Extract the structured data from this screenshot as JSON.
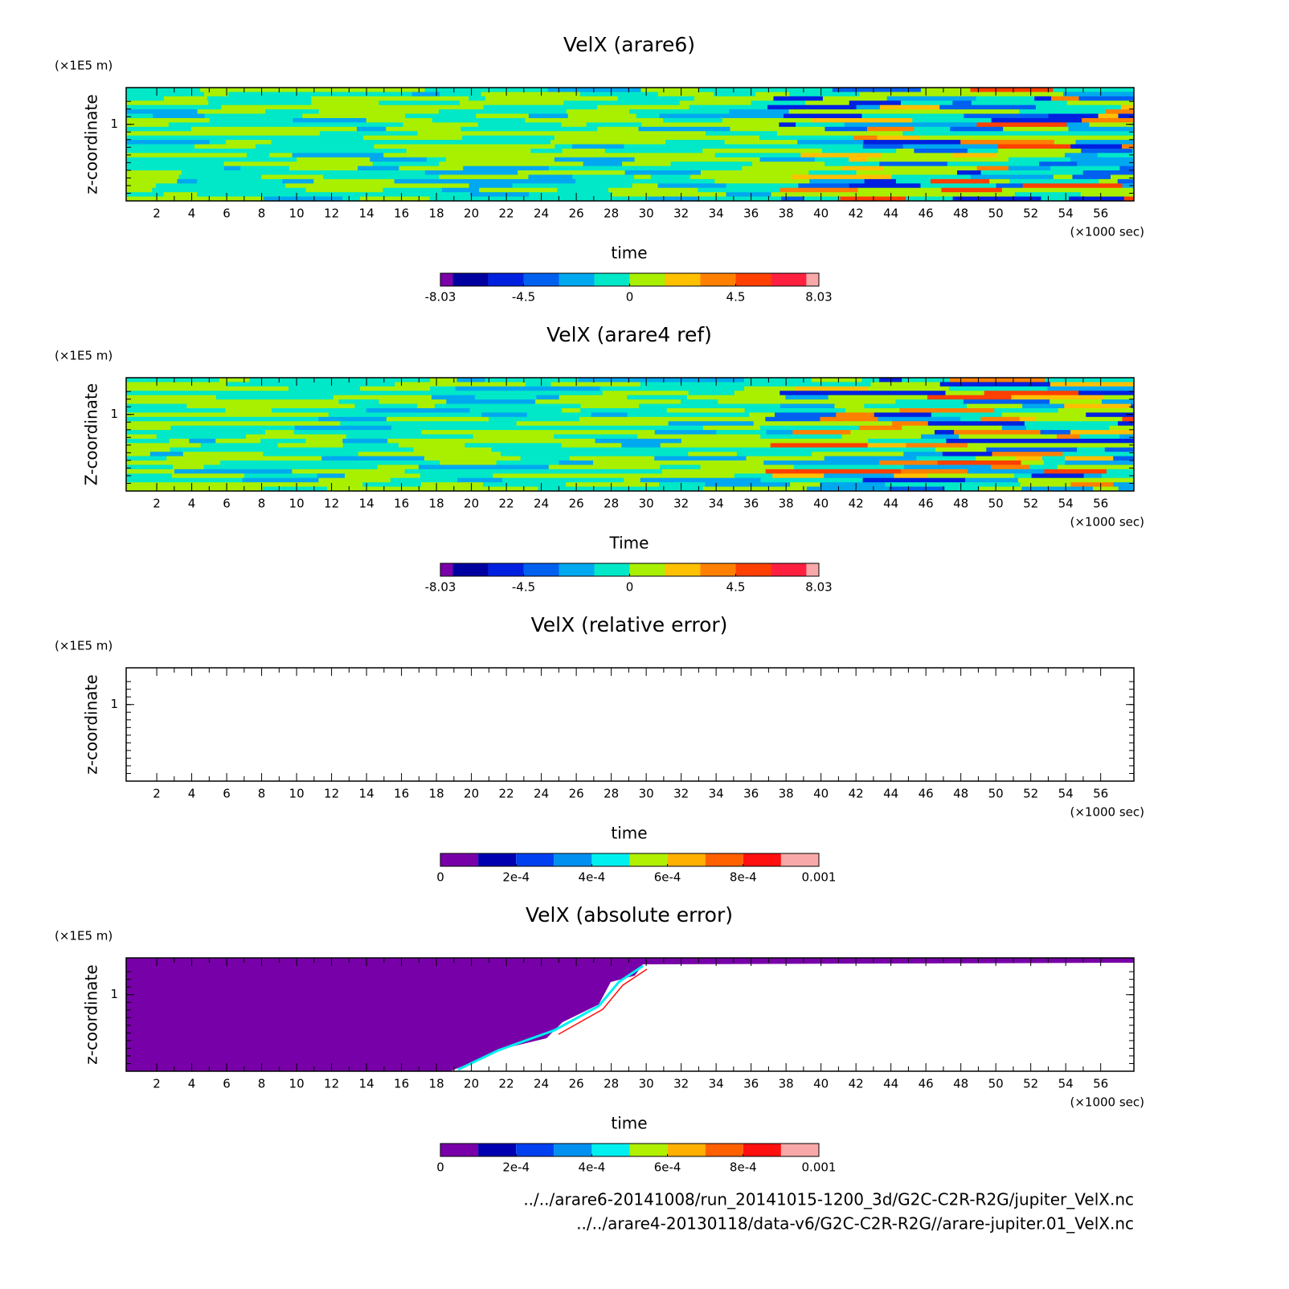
{
  "chart_data": [
    {
      "type": "contour",
      "title": "VelX (arare6)",
      "xlabel": "time",
      "ylabel": "z-coordinate",
      "xunit": "(×1000 sec)",
      "yunit": "(×1E5 m)",
      "xlim": [
        0.25,
        57.9
      ],
      "xticks": [
        2,
        4,
        6,
        8,
        10,
        12,
        14,
        16,
        18,
        20,
        22,
        24,
        26,
        28,
        30,
        32,
        34,
        36,
        38,
        40,
        42,
        44,
        46,
        48,
        50,
        52,
        54,
        56
      ],
      "ylim": [
        0,
        1.48
      ],
      "yticks": [
        1
      ],
      "colorbar": {
        "levels": [
          -8.03,
          -7.5,
          -6,
          -4.5,
          -3,
          -1.5,
          0,
          1.5,
          3,
          4.5,
          6,
          7.5,
          8.03
        ],
        "colors": [
          "#7a00aa",
          "#0000a0",
          "#0020e0",
          "#0060f0",
          "#00a8f0",
          "#00e8c8",
          "#a8f000",
          "#ffc000",
          "#ff8000",
          "#ff4000",
          "#ff2040",
          "#f8a8a8"
        ],
        "ticks": [
          -8.03,
          -4.5,
          0,
          4.5,
          8.03
        ]
      }
    },
    {
      "type": "contour",
      "title": "VelX (arare4 ref)",
      "xlabel": "Time",
      "ylabel": "Z-coordinate",
      "xunit": "(×1000 sec)",
      "yunit": "(×1E5 m)",
      "xlim": [
        0.25,
        57.9
      ],
      "xticks": [
        2,
        4,
        6,
        8,
        10,
        12,
        14,
        16,
        18,
        20,
        22,
        24,
        26,
        28,
        30,
        32,
        34,
        36,
        38,
        40,
        42,
        44,
        46,
        48,
        50,
        52,
        54,
        56
      ],
      "ylim": [
        0,
        1.48
      ],
      "yticks": [
        1
      ],
      "colorbar": {
        "levels": [
          -8.03,
          -7.5,
          -6,
          -4.5,
          -3,
          -1.5,
          0,
          1.5,
          3,
          4.5,
          6,
          7.5,
          8.03
        ],
        "colors": [
          "#7a00aa",
          "#0000a0",
          "#0020e0",
          "#0060f0",
          "#00a8f0",
          "#00e8c8",
          "#a8f000",
          "#ffc000",
          "#ff8000",
          "#ff4000",
          "#ff2040",
          "#f8a8a8"
        ],
        "ticks": [
          -8.03,
          -4.5,
          0,
          4.5,
          8.03
        ]
      }
    },
    {
      "type": "contour",
      "title": "VelX (relative error)",
      "xlabel": "time",
      "ylabel": "z-coordinate",
      "xunit": "(×1000 sec)",
      "yunit": "(×1E5 m)",
      "xlim": [
        0.25,
        57.9
      ],
      "xticks": [
        2,
        4,
        6,
        8,
        10,
        12,
        14,
        16,
        18,
        20,
        22,
        24,
        26,
        28,
        30,
        32,
        34,
        36,
        38,
        40,
        42,
        44,
        46,
        48,
        50,
        52,
        54,
        56
      ],
      "ylim": [
        0,
        1.48
      ],
      "yticks": [
        1
      ],
      "colorbar": {
        "levels": [
          0,
          0.0001,
          0.0002,
          0.0003,
          0.0004,
          0.0005,
          0.0006,
          0.0007,
          0.0008,
          0.0009,
          0.001
        ],
        "colors": [
          "#7800a8",
          "#0000b0",
          "#0040f0",
          "#0090f0",
          "#00f0f0",
          "#b0f000",
          "#ffb000",
          "#ff6000",
          "#ff1010",
          "#f8a8a8"
        ],
        "ticks": [
          0,
          {
            "value": 0.0002,
            "label": "2e-4"
          },
          {
            "value": 0.0004,
            "label": "4e-4"
          },
          {
            "value": 0.0006,
            "label": "6e-4"
          },
          {
            "value": 0.0008,
            "label": "8e-4"
          },
          0.001
        ]
      }
    },
    {
      "type": "contour",
      "title": "VelX (absolute error)",
      "xlabel": "time",
      "ylabel": "z-coordinate",
      "xunit": "(×1000 sec)",
      "yunit": "(×1E5 m)",
      "xlim": [
        0.25,
        57.9
      ],
      "xticks": [
        2,
        4,
        6,
        8,
        10,
        12,
        14,
        16,
        18,
        20,
        22,
        24,
        26,
        28,
        30,
        32,
        34,
        36,
        38,
        40,
        42,
        44,
        46,
        48,
        50,
        52,
        54,
        56
      ],
      "ylim": [
        0,
        1.48
      ],
      "yticks": [
        1
      ],
      "colorbar": {
        "levels": [
          0,
          0.0001,
          0.0002,
          0.0003,
          0.0004,
          0.0005,
          0.0006,
          0.0007,
          0.0008,
          0.0009,
          0.001
        ],
        "colors": [
          "#7800a8",
          "#0000b0",
          "#0040f0",
          "#0090f0",
          "#00f0f0",
          "#b0f000",
          "#ffb000",
          "#ff6000",
          "#ff1010",
          "#f8a8a8"
        ],
        "ticks": [
          0,
          {
            "value": 0.0002,
            "label": "2e-4"
          },
          {
            "value": 0.0004,
            "label": "4e-4"
          },
          {
            "value": 0.0006,
            "label": "6e-4"
          },
          {
            "value": 0.0008,
            "label": "8e-4"
          },
          0.001
        ]
      }
    }
  ],
  "footer": {
    "files": [
      "../../arare6-20141008/run_20141015-1200_3d/G2C-C2R-R2G/jupiter_VelX.nc",
      "../../arare4-20130118/data-v6/G2C-C2R-R2G//arare-jupiter.01_VelX.nc"
    ]
  }
}
